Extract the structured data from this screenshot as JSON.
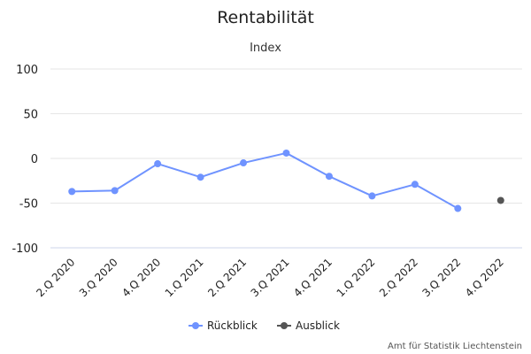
{
  "chart_data": {
    "type": "line",
    "title": "Rentabilität",
    "subtitle": "Index",
    "categories": [
      "2.Q 2020",
      "3.Q 2020",
      "4.Q 2020",
      "1.Q 2021",
      "2.Q 2021",
      "3.Q 2021",
      "4.Q 2021",
      "1.Q 2022",
      "2.Q 2022",
      "3.Q 2022",
      "4.Q 2022"
    ],
    "y_ticks": [
      "100",
      "50",
      "0",
      "-50",
      "-100"
    ],
    "ylim": [
      -100,
      100
    ],
    "grid": true,
    "legend_position": "bottom-center",
    "series": [
      {
        "name": "Rückblick",
        "color": "#6f93ff",
        "values": [
          -37,
          -36,
          -6,
          -21,
          -5,
          6,
          -20,
          -42,
          -29,
          -56,
          null
        ]
      },
      {
        "name": "Ausblick",
        "color": "#555555",
        "values": [
          null,
          null,
          null,
          null,
          null,
          null,
          null,
          null,
          null,
          null,
          -47
        ]
      }
    ]
  },
  "credit": "Amt für Statistik Liechtenstein"
}
